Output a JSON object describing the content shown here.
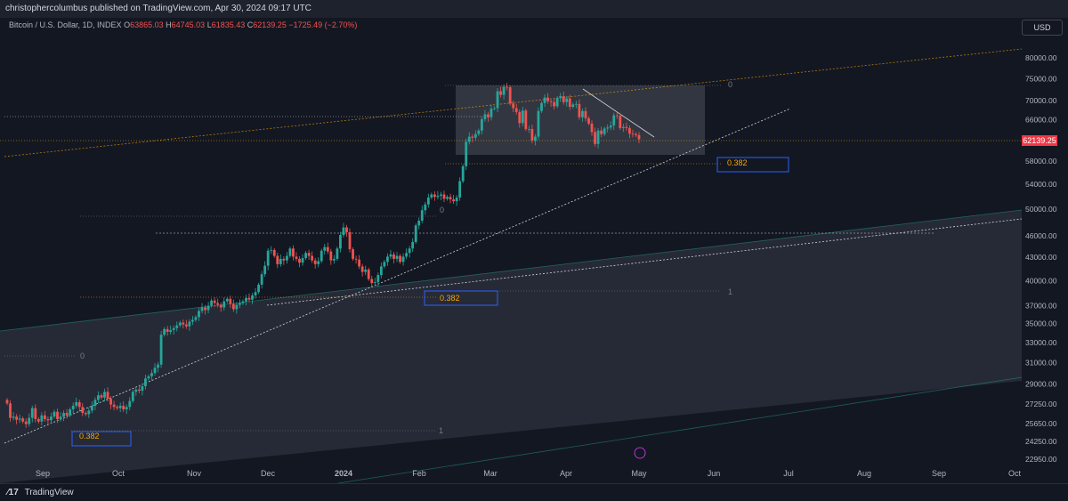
{
  "header": {
    "published_text": "christophercolumbus published on TradingView.com, Apr 30, 2024 09:17 UTC"
  },
  "legend": {
    "symbol": "Bitcoin / U.S. Dollar, 1D, INDEX",
    "open_label": "O",
    "open": "63865.03",
    "high_label": "H",
    "high": "64745.03",
    "low_label": "L",
    "low": "61835.43",
    "close_label": "C",
    "close": "62139.25",
    "change": "−1725.49 (−2.70%)"
  },
  "currency_button": "USD",
  "footer": {
    "brand": "TradingView",
    "logo_icon": "tradingview-logo-icon"
  },
  "colors": {
    "background": "#131722",
    "up": "#26a69a",
    "down": "#ef5350",
    "fib_blue": "#2962ff",
    "orange": "#f7a600"
  },
  "chart_data": {
    "type": "candlestick",
    "y_ticks": [
      "80000.00",
      "75000.00",
      "70000.00",
      "66000.00",
      "58000.00",
      "54000.00",
      "50000.00",
      "46000.00",
      "43000.00",
      "40000.00",
      "37000.00",
      "35000.00",
      "33000.00",
      "31000.00",
      "29000.00",
      "27250.00",
      "25650.00",
      "24250.00",
      "22950.00"
    ],
    "x_ticks": [
      "Sep",
      "Oct",
      "Nov",
      "Dec",
      "2024",
      "Feb",
      "Mar",
      "Apr",
      "May",
      "Jun",
      "Jul",
      "Aug",
      "Sep",
      "Oct"
    ],
    "last_price": "62139.25",
    "annotations": [
      {
        "label": "0"
      },
      {
        "label": "0.382"
      },
      {
        "label": "0"
      },
      {
        "label": "0.382"
      },
      {
        "label": "1"
      },
      {
        "label": "0"
      },
      {
        "label": "0.382"
      },
      {
        "label": "1"
      }
    ],
    "closes": [
      27300,
      26100,
      26200,
      25950,
      26050,
      25800,
      25600,
      26100,
      26900,
      26000,
      25800,
      26300,
      26000,
      25900,
      26200,
      26600,
      26000,
      26200,
      26500,
      26300,
      26800,
      27100,
      27400,
      27000,
      26500,
      26400,
      26700,
      27100,
      27600,
      28000,
      27800,
      28300,
      27700,
      27200,
      27000,
      26900,
      27100,
      26800,
      27000,
      27500,
      28300,
      28500,
      28400,
      28800,
      29500,
      29700,
      30000,
      30500,
      30800,
      33800,
      34400,
      34100,
      34300,
      34500,
      34800,
      35100,
      34900,
      34700,
      35200,
      35400,
      35700,
      36400,
      36800,
      36500,
      37000,
      37600,
      37300,
      37100,
      36800,
      37500,
      37800,
      37200,
      36600,
      37100,
      37300,
      37500,
      37900,
      37700,
      38200,
      38600,
      39500,
      40800,
      41900,
      43900,
      44000,
      43200,
      42100,
      42800,
      42600,
      43200,
      44200,
      43100,
      42800,
      42300,
      42900,
      43600,
      43200,
      42600,
      42100,
      42500,
      43900,
      44400,
      43800,
      42600,
      42800,
      44200,
      46100,
      47200,
      46500,
      44100,
      42800,
      42700,
      41800,
      41100,
      41400,
      40200,
      39700,
      39800,
      40700,
      41800,
      42400,
      43100,
      43400,
      42800,
      43200,
      42400,
      43100,
      43600,
      44200,
      45100,
      47500,
      48200,
      49800,
      50700,
      51800,
      52300,
      51900,
      52100,
      52300,
      51600,
      51900,
      51500,
      51200,
      51800,
      54500,
      57100,
      61600,
      62600,
      62400,
      63100,
      63800,
      66100,
      67100,
      66500,
      68300,
      68400,
      72100,
      71300,
      73100,
      73000,
      69400,
      68400,
      67600,
      65300,
      67900,
      64100,
      64100,
      61800,
      62600,
      67800,
      69500,
      70700,
      69900,
      69700,
      68800,
      70600,
      71000,
      69700,
      70500,
      68700,
      69200,
      69300,
      66500,
      67800,
      66300,
      65200,
      63500,
      61200,
      63800,
      63100,
      64200,
      64400,
      64800,
      66900,
      66800,
      64300,
      64500,
      64300,
      63200,
      63100,
      62900,
      62100
    ],
    "y_scale": "log"
  }
}
